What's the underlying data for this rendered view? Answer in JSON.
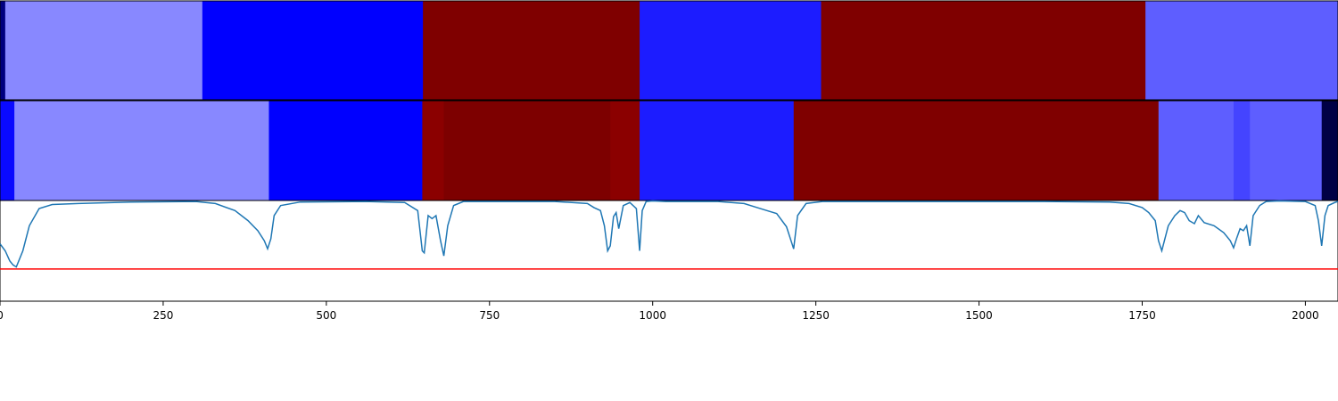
{
  "chart_data": {
    "type": "heatmap",
    "title": "",
    "xlabel": "",
    "ylabel": "",
    "xlim": [
      0,
      2050
    ],
    "x_ticks": [
      0,
      250,
      500,
      750,
      1000,
      1250,
      1500,
      1750,
      2000
    ],
    "x_tick_labels": [
      "0",
      "250",
      "500",
      "750",
      "1000",
      "1250",
      "1500",
      "1750",
      "2000"
    ],
    "grid": false,
    "legend": "none",
    "segmentation_rows": [
      {
        "segments": [
          {
            "start": 0,
            "end": 8,
            "color": "#00007f"
          },
          {
            "start": 8,
            "end": 310,
            "color": "#8888ff"
          },
          {
            "start": 310,
            "end": 648,
            "color": "#0000ff"
          },
          {
            "start": 648,
            "end": 980,
            "color": "#7f0000"
          },
          {
            "start": 980,
            "end": 1258,
            "color": "#1c1cff"
          },
          {
            "start": 1258,
            "end": 1755,
            "color": "#7f0000"
          },
          {
            "start": 1755,
            "end": 2050,
            "color": "#5e5eff"
          }
        ]
      },
      {
        "segments": [
          {
            "start": 0,
            "end": 22,
            "color": "#0a0aff"
          },
          {
            "start": 22,
            "end": 412,
            "color": "#8888ff"
          },
          {
            "start": 412,
            "end": 647,
            "color": "#0000ff"
          },
          {
            "start": 647,
            "end": 680,
            "color": "#8b0000"
          },
          {
            "start": 680,
            "end": 935,
            "color": "#7d0000"
          },
          {
            "start": 935,
            "end": 980,
            "color": "#8b0000"
          },
          {
            "start": 980,
            "end": 1216,
            "color": "#1c1cff"
          },
          {
            "start": 1216,
            "end": 1775,
            "color": "#7f0000"
          },
          {
            "start": 1775,
            "end": 1890,
            "color": "#5e5eff"
          },
          {
            "start": 1890,
            "end": 1915,
            "color": "#4444ff"
          },
          {
            "start": 1915,
            "end": 2025,
            "color": "#5e5eff"
          },
          {
            "start": 2025,
            "end": 2050,
            "color": "#000045"
          }
        ]
      }
    ],
    "line_panel": {
      "ylim": [
        0,
        1
      ],
      "series": [
        {
          "color": "#1f77b4",
          "x": [
            0,
            8,
            15,
            20,
            25,
            35,
            45,
            60,
            80,
            120,
            200,
            300,
            330,
            360,
            380,
            395,
            405,
            410,
            415,
            420,
            430,
            460,
            560,
            620,
            640,
            647,
            650,
            656,
            662,
            668,
            675,
            680,
            686,
            695,
            710,
            760,
            850,
            900,
            910,
            920,
            926,
            931,
            935,
            940,
            944,
            948,
            955,
            965,
            975,
            980,
            984,
            990,
            1000,
            1020,
            1100,
            1140,
            1160,
            1175,
            1190,
            1205,
            1212,
            1216,
            1222,
            1235,
            1260,
            1400,
            1600,
            1700,
            1730,
            1750,
            1760,
            1770,
            1775,
            1780,
            1790,
            1800,
            1808,
            1815,
            1822,
            1830,
            1836,
            1845,
            1860,
            1875,
            1885,
            1890,
            1895,
            1900,
            1905,
            1910,
            1915,
            1920,
            1930,
            1940,
            1960,
            2000,
            2015,
            2020,
            2025,
            2030,
            2035,
            2045,
            2050
          ],
          "y": [
            0.57,
            0.5,
            0.4,
            0.36,
            0.34,
            0.5,
            0.75,
            0.92,
            0.96,
            0.97,
            0.985,
            0.99,
            0.97,
            0.9,
            0.8,
            0.7,
            0.6,
            0.52,
            0.62,
            0.85,
            0.95,
            0.985,
            0.99,
            0.98,
            0.9,
            0.5,
            0.48,
            0.85,
            0.82,
            0.85,
            0.6,
            0.45,
            0.75,
            0.95,
            0.99,
            0.99,
            0.99,
            0.97,
            0.93,
            0.9,
            0.75,
            0.5,
            0.55,
            0.84,
            0.88,
            0.72,
            0.95,
            0.98,
            0.92,
            0.5,
            0.9,
            0.99,
            0.995,
            0.99,
            0.99,
            0.97,
            0.93,
            0.9,
            0.87,
            0.74,
            0.6,
            0.52,
            0.85,
            0.97,
            0.99,
            0.99,
            0.99,
            0.985,
            0.97,
            0.93,
            0.88,
            0.8,
            0.6,
            0.5,
            0.75,
            0.85,
            0.9,
            0.88,
            0.8,
            0.77,
            0.85,
            0.78,
            0.75,
            0.68,
            0.6,
            0.53,
            0.63,
            0.72,
            0.7,
            0.75,
            0.55,
            0.85,
            0.95,
            0.99,
            0.995,
            0.99,
            0.95,
            0.8,
            0.55,
            0.85,
            0.95,
            0.98,
            0.99
          ]
        }
      ],
      "threshold": {
        "value": 0.32,
        "color": "#ff0000"
      }
    }
  }
}
